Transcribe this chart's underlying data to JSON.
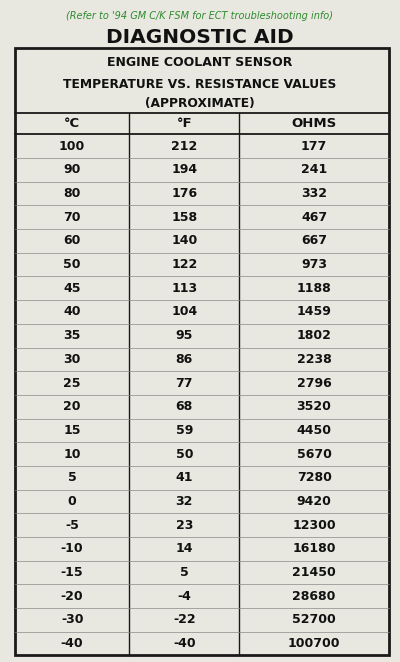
{
  "title": "DIAGNOSTIC AID",
  "subtitle_ref": "(Refer to '94 GM C/K FSM for ECT troubleshooting info)",
  "header1": "ENGINE COOLANT SENSOR",
  "header2": "TEMPERATURE VS. RESISTANCE VALUES",
  "header3": "(APPROXIMATE)",
  "col_headers": [
    "°C",
    "°F",
    "OHMS"
  ],
  "rows": [
    [
      "100",
      "212",
      "177"
    ],
    [
      "90",
      "194",
      "241"
    ],
    [
      "80",
      "176",
      "332"
    ],
    [
      "70",
      "158",
      "467"
    ],
    [
      "60",
      "140",
      "667"
    ],
    [
      "50",
      "122",
      "973"
    ],
    [
      "45",
      "113",
      "1188"
    ],
    [
      "40",
      "104",
      "1459"
    ],
    [
      "35",
      "95",
      "1802"
    ],
    [
      "30",
      "86",
      "2238"
    ],
    [
      "25",
      "77",
      "2796"
    ],
    [
      "20",
      "68",
      "3520"
    ],
    [
      "15",
      "59",
      "4450"
    ],
    [
      "10",
      "50",
      "5670"
    ],
    [
      "5",
      "41",
      "7280"
    ],
    [
      "0",
      "32",
      "9420"
    ],
    [
      "-5",
      "23",
      "12300"
    ],
    [
      "-10",
      "14",
      "16180"
    ],
    [
      "-15",
      "5",
      "21450"
    ],
    [
      "-20",
      "-4",
      "28680"
    ],
    [
      "-30",
      "-22",
      "52700"
    ],
    [
      "-40",
      "-40",
      "100700"
    ]
  ],
  "bg_color": "#e8e8e0",
  "table_bg": "#e8e8e0",
  "border_color": "#1a1a1a",
  "title_color": "#111111",
  "ref_color": "#2e8b2e",
  "header_color": "#111111",
  "data_color": "#111111",
  "figsize": [
    4.0,
    6.62
  ],
  "dpi": 100
}
